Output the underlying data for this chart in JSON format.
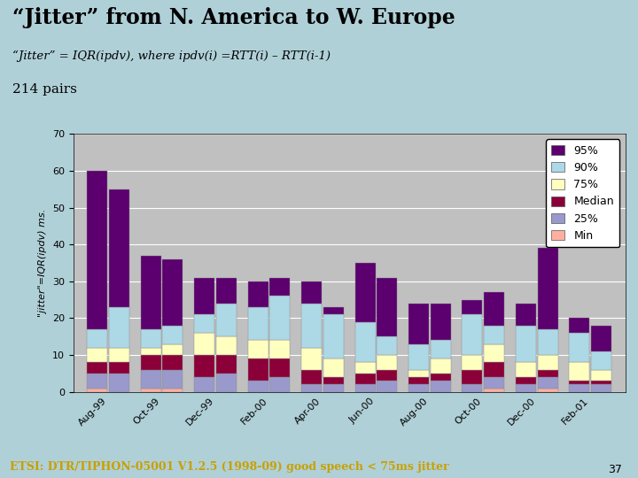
{
  "title": "“Jitter” from N. America to W. Europe",
  "subtitle": "“Jitter” = IQR(ipdv), where ipdv(i) =RTT(i) – RTT(i-1)",
  "pairs_label": "214 pairs",
  "ylabel": "\"jitter\"=IQR(ipdv) ms.",
  "footer": "ETSI: DTR/TIPHON-05001 V1.2.5 (1998-09) good speech < 75ms jitter",
  "slide_number": "37",
  "categories": [
    "Aug-99",
    "Oct-99",
    "Dec-99",
    "Feb-00",
    "Apr-00",
    "Jun-00",
    "Aug-00",
    "Oct-00",
    "Dec-00",
    "Feb-01"
  ],
  "ylim": [
    0,
    70
  ],
  "yticks": [
    0,
    10,
    20,
    30,
    40,
    50,
    60,
    70
  ],
  "legend_labels": [
    "95%",
    "90%",
    "75%",
    "Median",
    "25%",
    "Min"
  ],
  "colors": {
    "95%": "#5b006e",
    "90%": "#add8e6",
    "75%": "#ffffc0",
    "Median": "#8b0038",
    "25%": "#9999cc",
    "Min": "#ffb0a0"
  },
  "bar1": {
    "Min": [
      1,
      1,
      0,
      0,
      0,
      0,
      0,
      0,
      0,
      0
    ],
    "25%": [
      4,
      5,
      4,
      3,
      2,
      2,
      2,
      2,
      2,
      2
    ],
    "Median": [
      3,
      4,
      6,
      6,
      4,
      3,
      2,
      4,
      2,
      1
    ],
    "75%": [
      4,
      2,
      6,
      5,
      6,
      3,
      2,
      4,
      4,
      5
    ],
    "90%": [
      5,
      5,
      5,
      9,
      12,
      11,
      7,
      11,
      10,
      8
    ],
    "95%": [
      43,
      20,
      10,
      7,
      6,
      16,
      11,
      4,
      6,
      4
    ]
  },
  "bar2": {
    "Min": [
      0,
      1,
      0,
      0,
      0,
      0,
      0,
      1,
      1,
      0
    ],
    "25%": [
      5,
      5,
      5,
      4,
      2,
      3,
      3,
      3,
      3,
      2
    ],
    "Median": [
      3,
      4,
      5,
      5,
      2,
      3,
      2,
      4,
      2,
      1
    ],
    "75%": [
      4,
      3,
      5,
      5,
      5,
      4,
      4,
      5,
      4,
      3
    ],
    "90%": [
      11,
      5,
      9,
      12,
      12,
      5,
      5,
      5,
      7,
      5
    ],
    "95%": [
      32,
      18,
      7,
      5,
      2,
      16,
      10,
      9,
      22,
      7
    ]
  },
  "background_color": "#b0d0d8",
  "title_bg_color": "#c0dce0",
  "plot_bg_color": "#c0c0c0",
  "bar_width": 0.38,
  "bar_gap": 0.03
}
